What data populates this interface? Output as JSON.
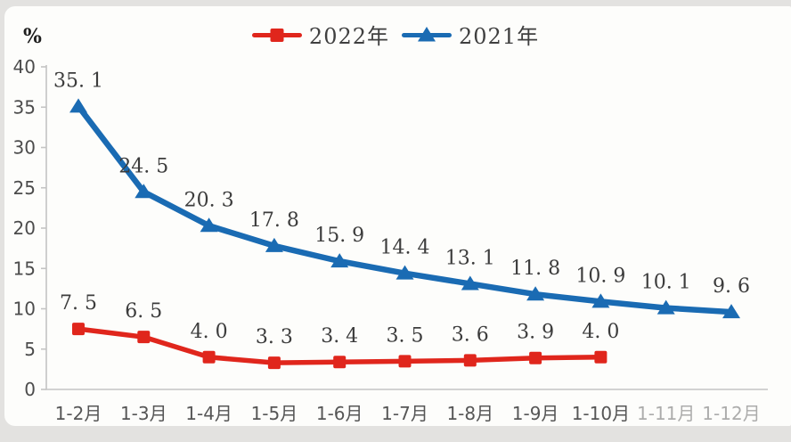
{
  "unit_label": "%",
  "legend": {
    "items": [
      {
        "label": "2022年",
        "color": "#E0261C",
        "marker": "square"
      },
      {
        "label": "2021年",
        "color": "#1A6BB3",
        "marker": "triangle"
      }
    ]
  },
  "chart_data": {
    "type": "line",
    "title": "",
    "xlabel": "",
    "ylabel": "%",
    "ylim": [
      0,
      40
    ],
    "yticks": [
      0,
      5,
      10,
      15,
      20,
      25,
      30,
      35,
      40
    ],
    "grid": false,
    "legend_position": "top-center",
    "categories": [
      "1-2月",
      "1-3月",
      "1-4月",
      "1-5月",
      "1-6月",
      "1-7月",
      "1-8月",
      "1-9月",
      "1-10月",
      "1-11月",
      "1-12月"
    ],
    "faded_categories": [
      "1-11月",
      "1-12月"
    ],
    "series": [
      {
        "name": "2021年",
        "color": "#1A6BB3",
        "marker": "triangle",
        "values": [
          35.1,
          24.5,
          20.3,
          17.8,
          15.9,
          14.4,
          13.1,
          11.8,
          10.9,
          10.1,
          9.6
        ],
        "labels": [
          "35. 1",
          "24. 5",
          "20. 3",
          "17. 8",
          "15. 9",
          "14. 4",
          "13. 1",
          "11. 8",
          "10. 9",
          "10. 1",
          "9. 6"
        ]
      },
      {
        "name": "2022年",
        "color": "#E0261C",
        "marker": "square",
        "values": [
          7.5,
          6.5,
          4.0,
          3.3,
          3.4,
          3.5,
          3.6,
          3.9,
          4.0
        ],
        "labels": [
          "7. 5",
          "6. 5",
          "4. 0",
          "3. 3",
          "3. 4",
          "3. 5",
          "3. 6",
          "3. 9",
          "4. 0"
        ]
      }
    ]
  }
}
